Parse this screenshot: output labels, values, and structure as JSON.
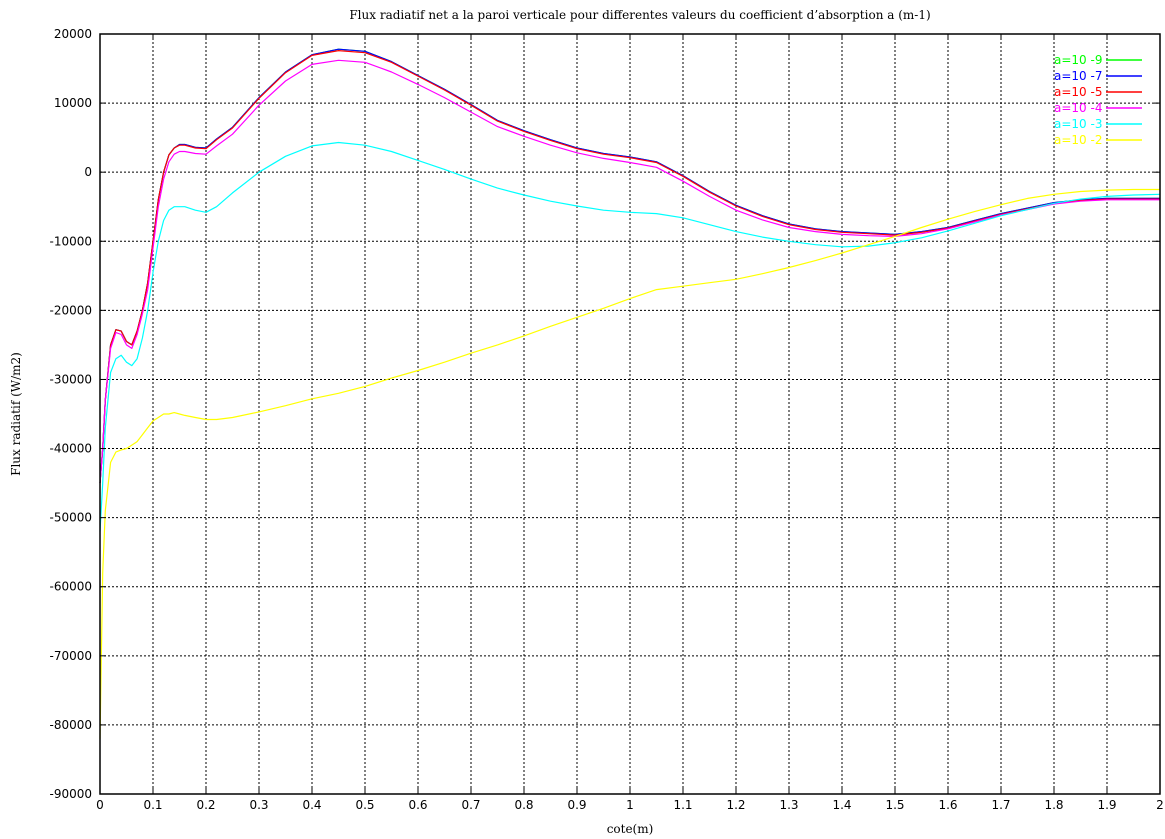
{
  "chart_data": {
    "type": "line",
    "title": "Flux radiatif net a la paroi verticale pour differentes valeurs du coefficient d’absorption a (m-1)",
    "xlabel": "cote(m)",
    "ylabel": "Flux radiatif (W/m2)",
    "xlim": [
      0,
      2
    ],
    "ylim": [
      -90000,
      20000
    ],
    "grid": true,
    "legend_position": "top-right",
    "x_ticks": [
      "0",
      "0.1",
      "0.2",
      "0.3",
      "0.4",
      "0.5",
      "0.6",
      "0.7",
      "0.8",
      "0.9",
      "1",
      "1.1",
      "1.2",
      "1.3",
      "1.4",
      "1.5",
      "1.6",
      "1.7",
      "1.8",
      "1.9",
      "2"
    ],
    "y_ticks": [
      "20000",
      "10000",
      "0",
      "-10000",
      "-20000",
      "-30000",
      "-40000",
      "-50000",
      "-60000",
      "-70000",
      "-80000",
      "-90000"
    ],
    "x": [
      0,
      0.005,
      0.01,
      0.02,
      0.03,
      0.04,
      0.05,
      0.06,
      0.07,
      0.08,
      0.09,
      0.1,
      0.11,
      0.12,
      0.13,
      0.14,
      0.15,
      0.16,
      0.18,
      0.2,
      0.22,
      0.25,
      0.3,
      0.35,
      0.4,
      0.45,
      0.5,
      0.55,
      0.6,
      0.65,
      0.7,
      0.75,
      0.8,
      0.85,
      0.9,
      0.95,
      1.0,
      1.05,
      1.1,
      1.15,
      1.2,
      1.25,
      1.3,
      1.35,
      1.4,
      1.45,
      1.5,
      1.55,
      1.6,
      1.65,
      1.7,
      1.75,
      1.8,
      1.85,
      1.9,
      1.95,
      2.0
    ],
    "series": [
      {
        "name": "a=10 -9",
        "color": "#00ff00",
        "values": [
          -45000,
          -40000,
          -33000,
          -25000,
          -22800,
          -23000,
          -24500,
          -25000,
          -23000,
          -20000,
          -16000,
          -10000,
          -4000,
          0,
          2500,
          3500,
          4000,
          4000,
          3600,
          3500,
          4800,
          6500,
          10800,
          14500,
          17000,
          17800,
          17500,
          16000,
          14000,
          12000,
          9800,
          7500,
          6000,
          4700,
          3500,
          2700,
          2200,
          1500,
          -500,
          -2800,
          -4800,
          -6300,
          -7500,
          -8200,
          -8600,
          -8800,
          -9000,
          -8600,
          -8000,
          -7000,
          -6000,
          -5200,
          -4400,
          -4000,
          -3800,
          -3800,
          -3800
        ]
      },
      {
        "name": "a=10 -7",
        "color": "#0000ff",
        "values": [
          -45000,
          -40000,
          -33000,
          -25000,
          -22800,
          -23000,
          -24500,
          -25000,
          -23000,
          -20000,
          -16000,
          -10000,
          -4000,
          0,
          2500,
          3500,
          4000,
          4000,
          3600,
          3500,
          4800,
          6500,
          10800,
          14500,
          17000,
          17800,
          17500,
          16000,
          14000,
          12000,
          9800,
          7500,
          6000,
          4700,
          3500,
          2700,
          2200,
          1500,
          -500,
          -2800,
          -4800,
          -6300,
          -7500,
          -8200,
          -8600,
          -8800,
          -9000,
          -8600,
          -8000,
          -7000,
          -6000,
          -5200,
          -4400,
          -4000,
          -3800,
          -3800,
          -3800
        ]
      },
      {
        "name": "a=10 -5",
        "color": "#ff0000",
        "values": [
          -45000,
          -40000,
          -33000,
          -25000,
          -22800,
          -23000,
          -24500,
          -25000,
          -23000,
          -20000,
          -16000,
          -10000,
          -4000,
          0,
          2500,
          3500,
          3900,
          3900,
          3500,
          3400,
          4700,
          6400,
          10700,
          14400,
          16900,
          17600,
          17300,
          15900,
          13900,
          11900,
          9700,
          7400,
          5900,
          4600,
          3400,
          2600,
          2100,
          1400,
          -600,
          -2900,
          -4900,
          -6400,
          -7600,
          -8300,
          -8700,
          -8900,
          -9100,
          -8700,
          -8100,
          -7100,
          -6100,
          -5300,
          -4500,
          -4100,
          -3900,
          -3900,
          -3900
        ]
      },
      {
        "name": "a=10 -4",
        "color": "#ff00ff",
        "values": [
          -45000,
          -40000,
          -33000,
          -25500,
          -23200,
          -23500,
          -25000,
          -25500,
          -23500,
          -20500,
          -17000,
          -11000,
          -5000,
          -1000,
          1500,
          2600,
          3000,
          3000,
          2700,
          2600,
          3800,
          5500,
          9700,
          13200,
          15600,
          16200,
          15900,
          14500,
          12700,
          10800,
          8700,
          6600,
          5200,
          3900,
          2800,
          2000,
          1400,
          700,
          -1300,
          -3500,
          -5500,
          -6900,
          -8000,
          -8600,
          -9000,
          -9200,
          -9300,
          -8900,
          -8200,
          -7200,
          -6200,
          -5400,
          -4600,
          -4200,
          -4000,
          -4000,
          -4000
        ]
      },
      {
        "name": "a=10 -3",
        "color": "#00ffff",
        "values": [
          -52000,
          -45000,
          -37000,
          -29000,
          -27000,
          -26500,
          -27500,
          -28000,
          -27000,
          -24000,
          -20000,
          -14500,
          -10000,
          -7000,
          -5500,
          -5000,
          -5000,
          -5000,
          -5500,
          -5800,
          -5000,
          -3000,
          0,
          2300,
          3800,
          4300,
          3900,
          3000,
          1700,
          400,
          -1000,
          -2300,
          -3300,
          -4200,
          -4900,
          -5500,
          -5800,
          -6000,
          -6600,
          -7600,
          -8600,
          -9400,
          -10000,
          -10500,
          -10800,
          -10700,
          -10200,
          -9500,
          -8500,
          -7400,
          -6300,
          -5400,
          -4500,
          -3900,
          -3500,
          -3300,
          -3200
        ]
      },
      {
        "name": "a=10 -2",
        "color": "#ffff00",
        "values": [
          -82000,
          -58000,
          -49000,
          -42000,
          -40500,
          -40200,
          -40000,
          -39500,
          -39000,
          -38000,
          -37000,
          -36000,
          -35500,
          -35000,
          -35000,
          -34800,
          -35000,
          -35200,
          -35500,
          -35800,
          -35800,
          -35500,
          -34700,
          -33800,
          -32800,
          -32000,
          -31000,
          -29800,
          -28700,
          -27500,
          -26200,
          -25000,
          -23700,
          -22300,
          -21000,
          -19700,
          -18300,
          -17000,
          -16500,
          -16000,
          -15500,
          -14700,
          -13800,
          -12800,
          -11700,
          -10500,
          -9300,
          -8000,
          -6800,
          -5700,
          -4700,
          -3800,
          -3200,
          -2800,
          -2600,
          -2500,
          -2500
        ]
      }
    ]
  }
}
